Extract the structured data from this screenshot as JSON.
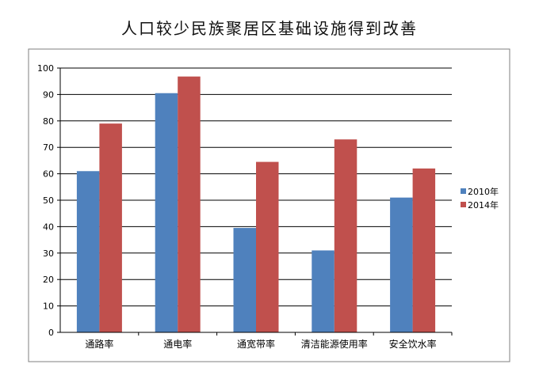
{
  "chart_data": {
    "type": "bar",
    "title": "人口较少民族聚居区基础设施得到改善",
    "xlabel": "",
    "ylabel": "",
    "categories": [
      "通路率",
      "通电率",
      "通宽带率",
      "清洁能源使用率",
      "安全饮水率"
    ],
    "series": [
      {
        "name": "2010年",
        "color": "#4f81bd",
        "values": [
          61,
          90.5,
          39.5,
          31,
          51
        ]
      },
      {
        "name": "2014年",
        "color": "#c0504d",
        "values": [
          79,
          96.8,
          64.5,
          73,
          62
        ]
      }
    ],
    "ylim": [
      0,
      100
    ],
    "yticks": [
      "0",
      "10",
      "20",
      "30",
      "40",
      "50",
      "60",
      "70",
      "80",
      "90",
      "100"
    ],
    "grid": true,
    "legend_position": "right"
  }
}
